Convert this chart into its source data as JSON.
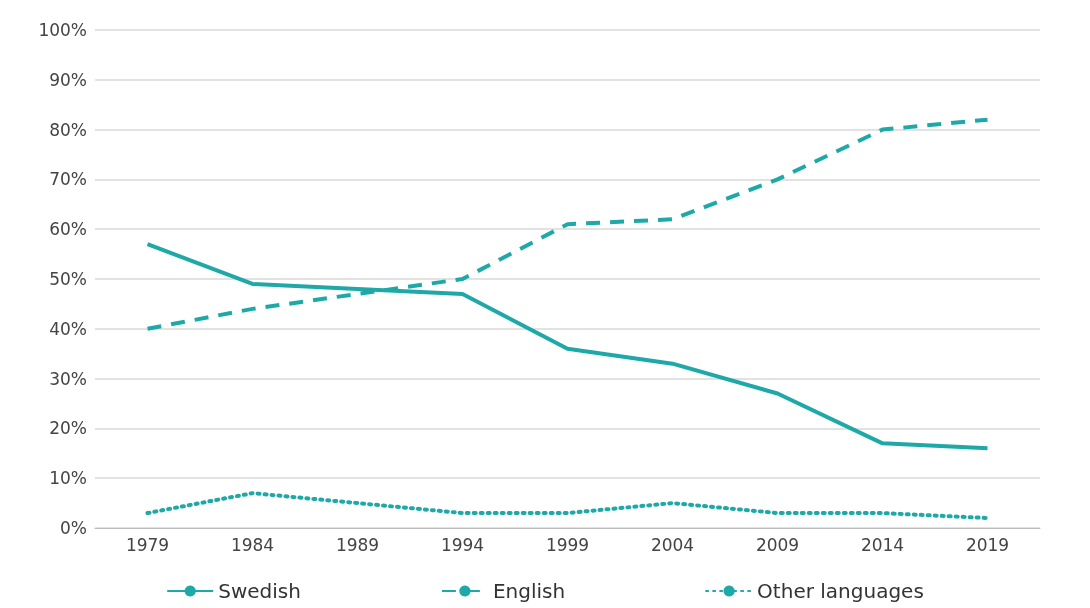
{
  "chart_data": {
    "type": "line",
    "categories": [
      "1979",
      "1984",
      "1989",
      "1994",
      "1999",
      "2004",
      "2009",
      "2014",
      "2019"
    ],
    "series": [
      {
        "name": "Swedish",
        "color": "#1ea8a8",
        "line_style": "solid",
        "values": [
          57,
          49,
          48,
          47,
          36,
          33,
          27,
          17,
          16
        ]
      },
      {
        "name": "English",
        "color": "#1ea8a8",
        "line_style": "dashed",
        "values": [
          40,
          44,
          47,
          50,
          61,
          62,
          70,
          80,
          82
        ]
      },
      {
        "name": "Other languages",
        "color": "#1ea8a8",
        "line_style": "dotted",
        "values": [
          3,
          7,
          5,
          3,
          3,
          5,
          3,
          3,
          2
        ]
      }
    ],
    "ylim": [
      0,
      100
    ],
    "yticks": [
      {
        "value": 0,
        "label": "0%"
      },
      {
        "value": 10,
        "label": "10%"
      },
      {
        "value": 20,
        "label": "20%"
      },
      {
        "value": 30,
        "label": "30%"
      },
      {
        "value": 40,
        "label": "40%"
      },
      {
        "value": 50,
        "label": "50%"
      },
      {
        "value": 60,
        "label": "60%"
      },
      {
        "value": 70,
        "label": "70%"
      },
      {
        "value": 80,
        "label": "80%"
      },
      {
        "value": 90,
        "label": "90%"
      },
      {
        "value": 100,
        "label": "100%"
      }
    ],
    "grid": "y",
    "legend": "bottom",
    "marker": "none"
  }
}
